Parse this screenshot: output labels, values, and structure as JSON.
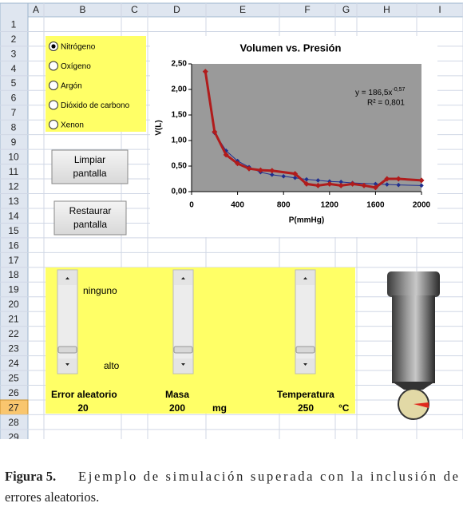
{
  "sheet": {
    "columns": [
      "A",
      "B",
      "C",
      "D",
      "E",
      "F",
      "G",
      "H",
      "I"
    ],
    "rows": [
      "1",
      "2",
      "3",
      "4",
      "5",
      "6",
      "7",
      "8",
      "9",
      "10",
      "11",
      "12",
      "13",
      "14",
      "15",
      "16",
      "17",
      "18",
      "19",
      "20",
      "21",
      "22",
      "23",
      "24",
      "25",
      "26",
      "27",
      "28",
      "29"
    ],
    "selected_row": 27
  },
  "gas_options": [
    {
      "label": "Nitrógeno",
      "selected": true
    },
    {
      "label": "Oxígeno",
      "selected": false
    },
    {
      "label": "Argón",
      "selected": false
    },
    {
      "label": "Dióxido de carbono",
      "selected": false
    },
    {
      "label": "Xenon",
      "selected": false
    }
  ],
  "buttons": [
    {
      "lines": [
        "Limpiar",
        "pantalla"
      ]
    },
    {
      "lines": [
        "Restaurar",
        "pantalla"
      ]
    }
  ],
  "controls": {
    "error_min_label": "ninguno",
    "error_max_label": "alto",
    "error": {
      "label": "Error aleatorio",
      "value": 20
    },
    "mass": {
      "label": "Masa",
      "value": 200,
      "unit": "mg"
    },
    "temperature": {
      "label": "Temperatura",
      "value": 250,
      "unit": "°C"
    }
  },
  "chart_data": {
    "type": "line",
    "title": "Volumen vs. Presión",
    "x_label": "P(mmHg)",
    "y_label": "V(L)",
    "trendline_equation": {
      "text": "y = 186,5x",
      "exponent": "-0,57"
    },
    "r_squared": "R² = 0,801",
    "xlim": [
      0,
      2000
    ],
    "xticks": [
      0,
      400,
      800,
      1200,
      1600,
      2000
    ],
    "ylim": [
      0,
      2.5
    ],
    "yticks": [
      {
        "value": 0,
        "label": "0,00"
      },
      {
        "value": 0.5,
        "label": "0,50"
      },
      {
        "value": 1,
        "label": "1,00"
      },
      {
        "value": 1.5,
        "label": "1,50"
      },
      {
        "value": 2,
        "label": "2,00"
      },
      {
        "value": 2.5,
        "label": "2,50"
      }
    ],
    "background": "#9a9a9a",
    "series": [
      {
        "color": "#1f2f8f",
        "x": [
          120,
          200,
          300,
          400,
          500,
          600,
          700,
          800,
          900,
          1000,
          1100,
          1200,
          1300,
          1400,
          1600,
          1700,
          1800,
          2000
        ],
        "values": [
          2.35,
          1.15,
          0.8,
          0.6,
          0.48,
          0.38,
          0.33,
          0.3,
          0.27,
          0.24,
          0.22,
          0.2,
          0.19,
          0.17,
          0.15,
          0.14,
          0.13,
          0.12
        ]
      },
      {
        "color": "#b01c1c",
        "x": [
          120,
          200,
          300,
          400,
          500,
          600,
          700,
          900,
          1000,
          1100,
          1200,
          1300,
          1400,
          1500,
          1600,
          1700,
          1800,
          2000
        ],
        "values": [
          2.35,
          1.17,
          0.72,
          0.55,
          0.45,
          0.42,
          0.41,
          0.35,
          0.15,
          0.12,
          0.15,
          0.12,
          0.15,
          0.12,
          0.08,
          0.25,
          0.25,
          0.22
        ]
      }
    ]
  },
  "caption": {
    "label": "Figura 5.",
    "line1": "Ejemplo de simulación superada con la inclusión de",
    "line2": "errores aleatorios."
  }
}
